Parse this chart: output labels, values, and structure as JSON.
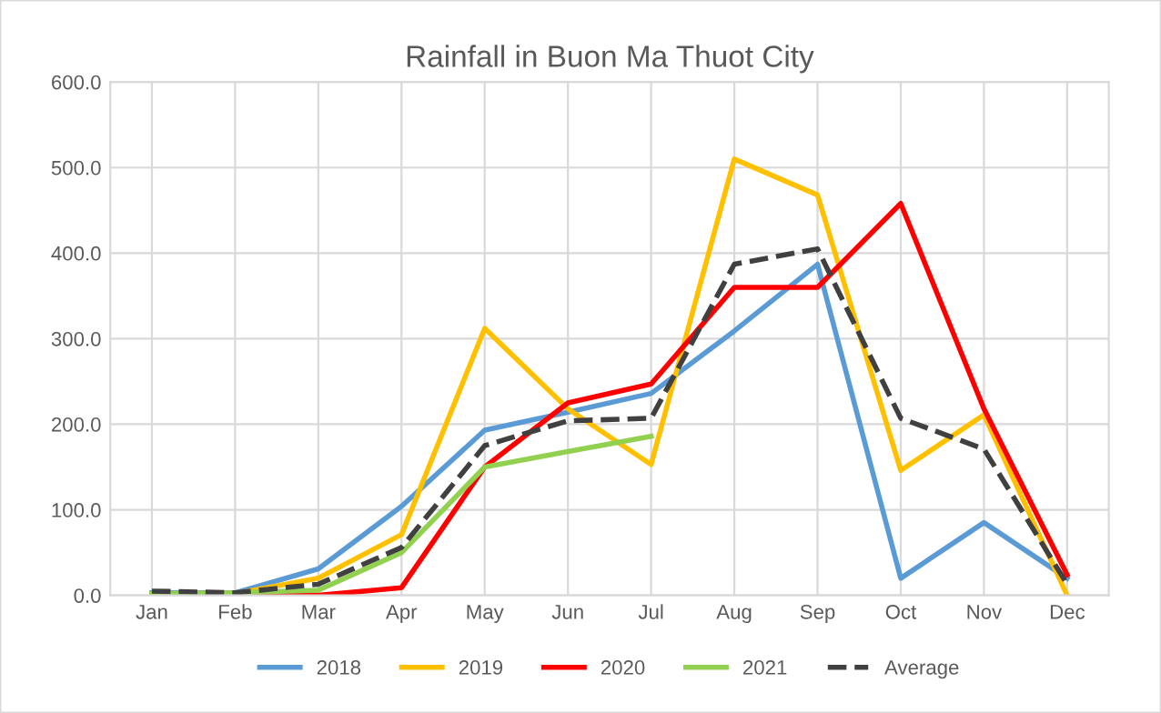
{
  "chart_data": {
    "type": "line",
    "title": "Rainfall in Buon Ma Thuot City",
    "categories": [
      "Jan",
      "Feb",
      "Mar",
      "Apr",
      "May",
      "Jun",
      "Jul",
      "Aug",
      "Sep",
      "Oct",
      "Nov",
      "Dec"
    ],
    "series": [
      {
        "name": "2018",
        "color": "#5b9bd5",
        "values": [
          3,
          3,
          31,
          104,
          193,
          214,
          236,
          309,
          387,
          20,
          85,
          20
        ]
      },
      {
        "name": "2019",
        "color": "#ffc000",
        "values": [
          2,
          2,
          20,
          71,
          312,
          218,
          153,
          510,
          468,
          146,
          211,
          0
        ]
      },
      {
        "name": "2020",
        "color": "#ff0000",
        "values": [
          0,
          0,
          0,
          9,
          150,
          225,
          247,
          360,
          360,
          458,
          218,
          24
        ]
      },
      {
        "name": "2021",
        "color": "#92d050",
        "values": [
          2,
          3,
          6,
          50,
          150,
          168,
          186,
          null,
          null,
          null,
          null,
          null
        ]
      },
      {
        "name": "Average",
        "color": "#404040",
        "line_style": "dashed",
        "values": [
          5,
          3,
          13,
          56,
          175,
          204,
          207,
          387,
          405,
          207,
          171,
          13
        ]
      }
    ],
    "ylim": [
      0,
      600
    ],
    "yticks": [
      {
        "value": 0,
        "label": "0.0"
      },
      {
        "value": 100,
        "label": "100.0"
      },
      {
        "value": 200,
        "label": "200.0"
      },
      {
        "value": 300,
        "label": "300.0"
      },
      {
        "value": 400,
        "label": "400.0"
      },
      {
        "value": 500,
        "label": "500.0"
      },
      {
        "value": 600,
        "label": "600.0"
      }
    ],
    "grid": true,
    "legend": "bottom",
    "line_style": "solid"
  }
}
